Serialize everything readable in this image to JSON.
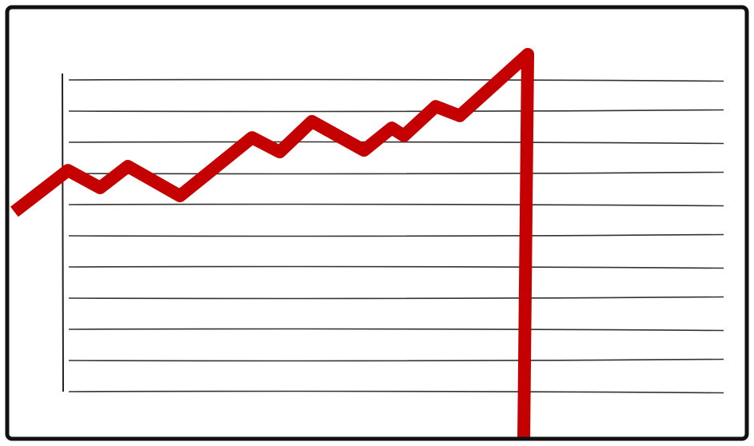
{
  "chart_data": {
    "type": "line",
    "x": [
      -1.54,
      0.18,
      1.21,
      2.1,
      3.77,
      6.08,
      6.97,
      8,
      9.67,
      10.56,
      10.95,
      11.97,
      12.74,
      14.92,
      14.79
    ],
    "series": [
      {
        "color": "#c40000",
        "values": [
          5.77,
          7.1,
          6.54,
          7.23,
          6.28,
          8.15,
          7.69,
          8.67,
          7.74,
          8.46,
          8.21,
          9.15,
          8.85,
          10.82,
          -1.74
        ]
      }
    ],
    "xlim": [
      0,
      21.2
    ],
    "ylim": [
      0,
      10
    ],
    "yticks": [
      0,
      1,
      2,
      3,
      4,
      5,
      6,
      7,
      8,
      9,
      10
    ],
    "grid": true
  }
}
